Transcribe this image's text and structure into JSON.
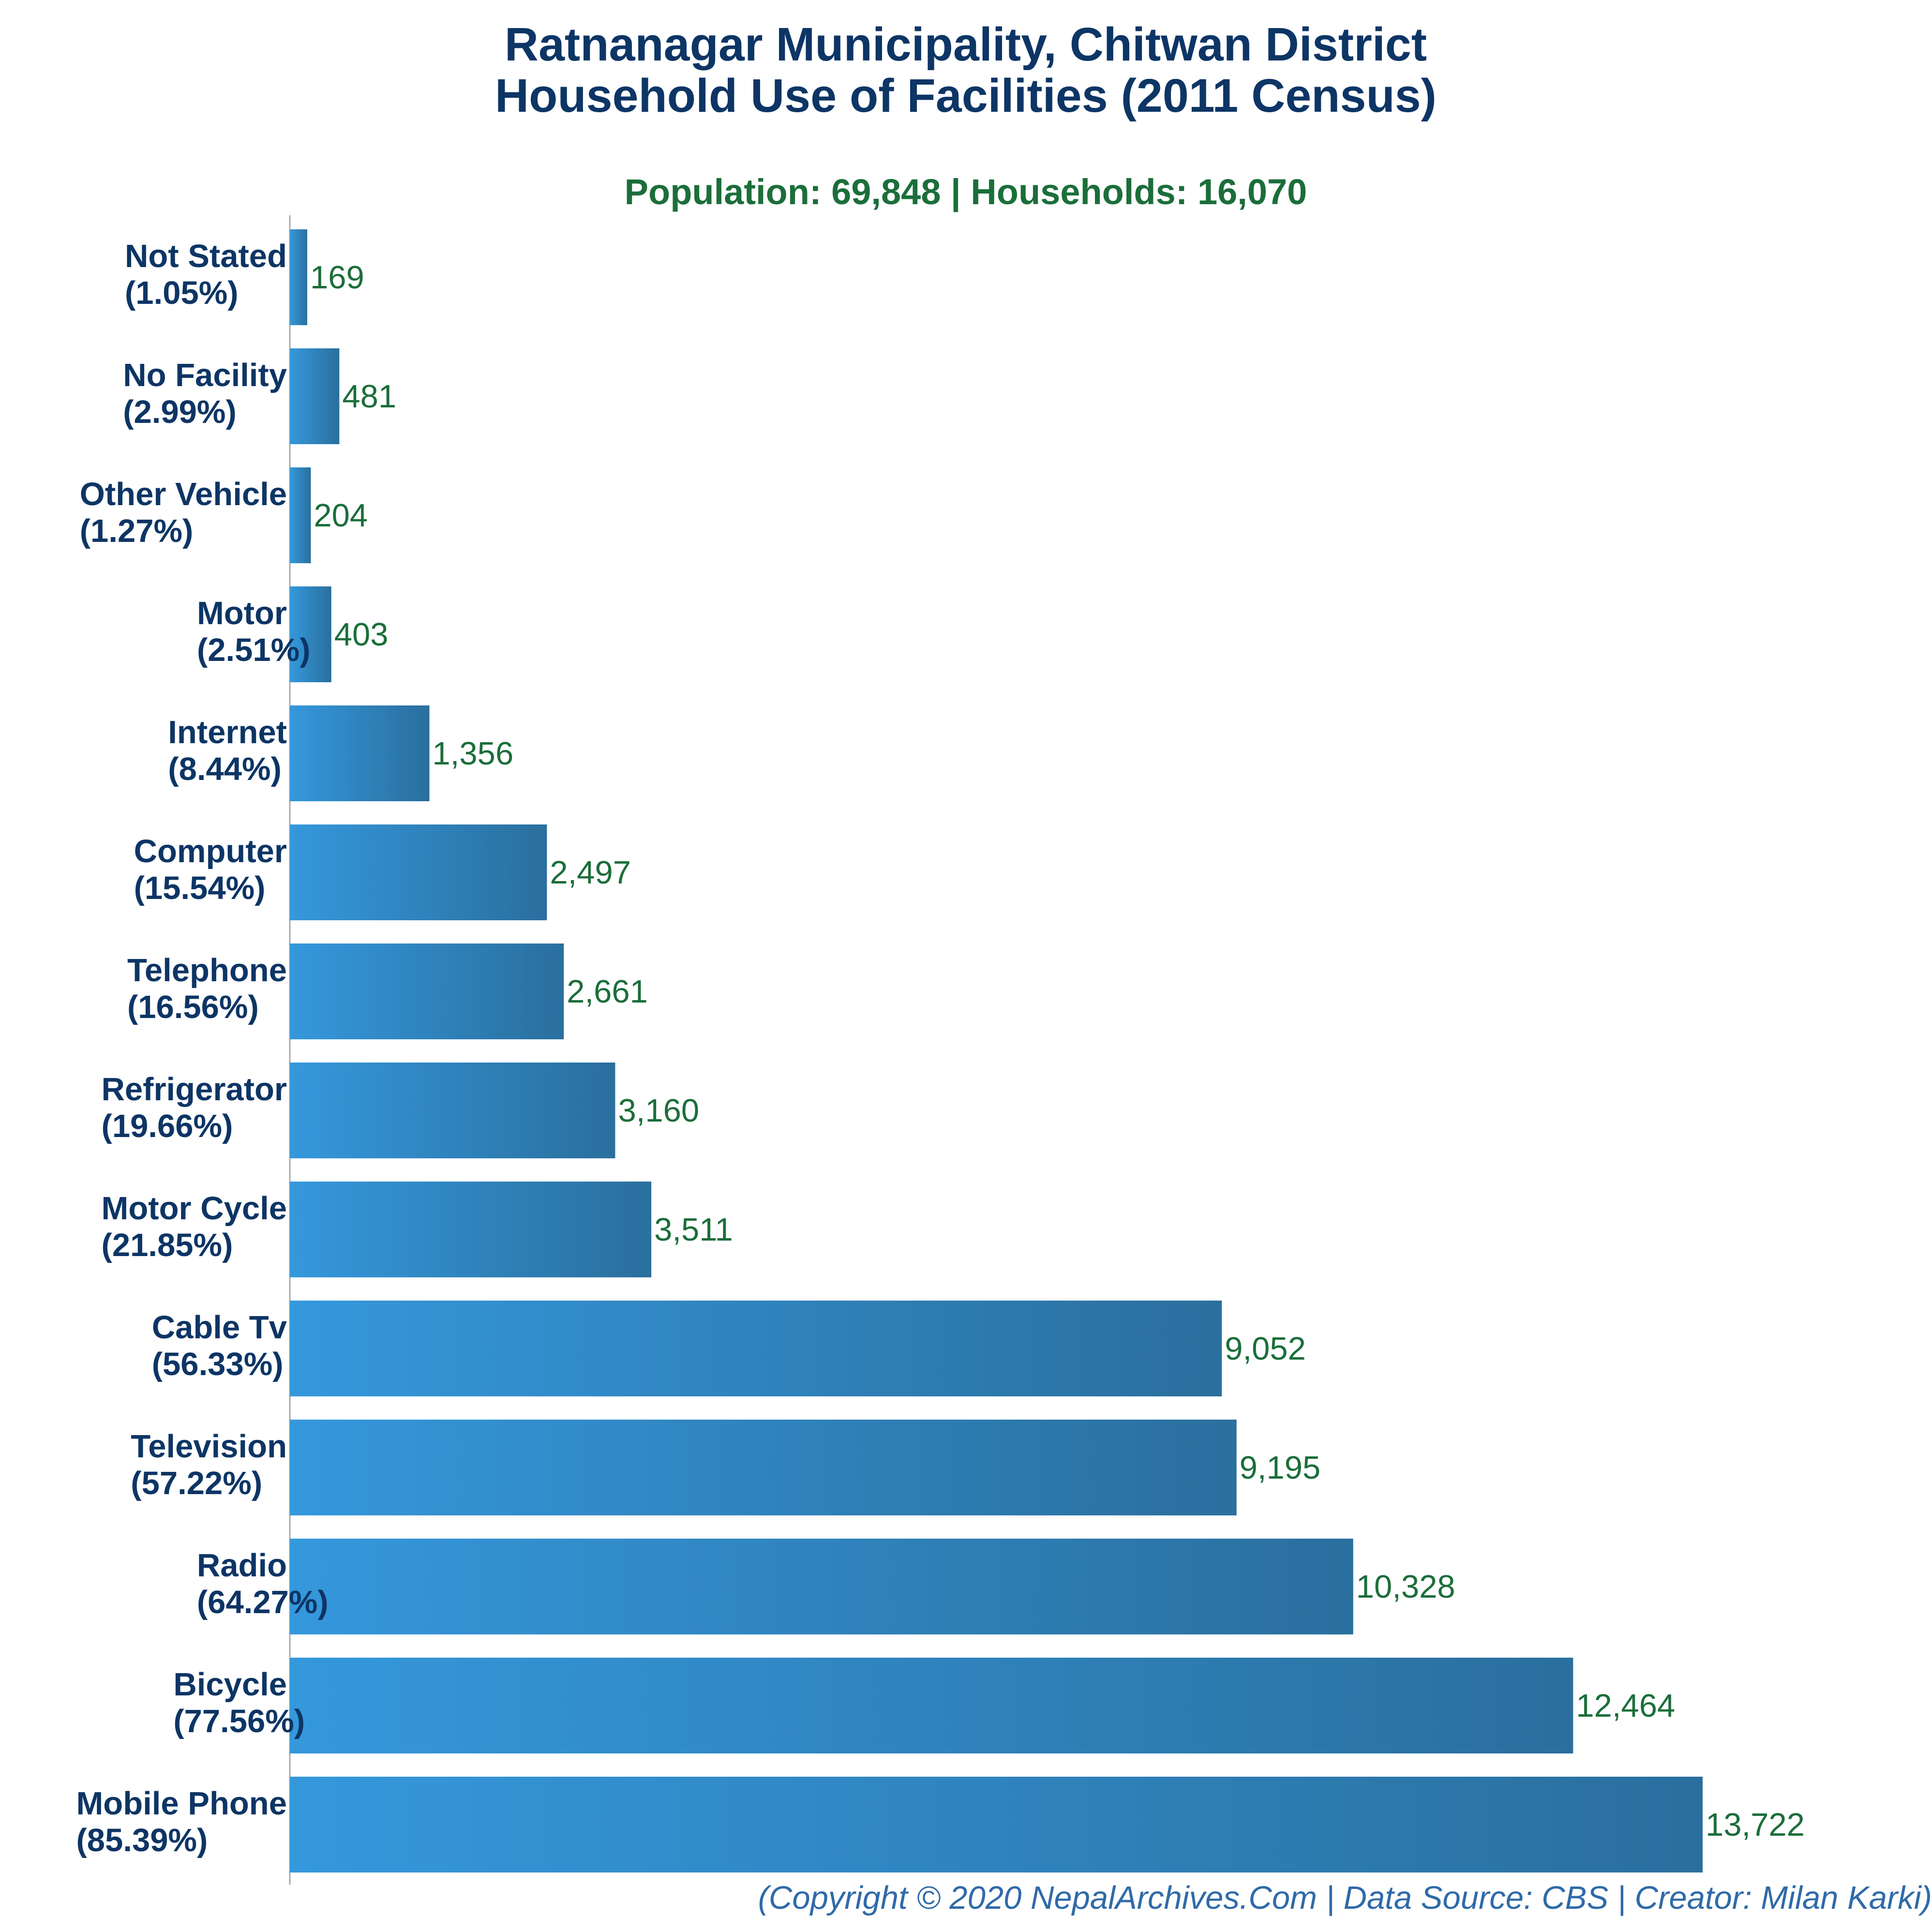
{
  "title_line1": "Ratnanagar Municipality, Chitwan District",
  "title_line2": "Household Use of Facilities (2011 Census)",
  "subtitle": "Population: 69,848 | Households: 16,070",
  "footer": "(Copyright © 2020 NepalArchives.Com | Data Source: CBS | Creator: Milan Karki)",
  "colors": {
    "bar_start": "#3598dc",
    "bar_end": "#2a6f9e",
    "title": "#0d3565",
    "value": "#1b6e3a",
    "footer": "#2f6aa8",
    "axis": "#aaaaaa"
  },
  "chart_data": {
    "type": "bar",
    "orientation": "horizontal",
    "categories": [
      "Not Stated",
      "No Facility",
      "Other Vehicle",
      "Motor",
      "Internet",
      "Computer",
      "Telephone",
      "Refrigerator",
      "Motor Cycle",
      "Cable Tv",
      "Television",
      "Radio",
      "Bicycle",
      "Mobile Phone"
    ],
    "percent_labels": [
      "(1.05%)",
      "(2.99%)",
      "(1.27%)",
      "(2.51%)",
      "(8.44%)",
      "(15.54%)",
      "(16.56%)",
      "(19.66%)",
      "(21.85%)",
      "(56.33%)",
      "(57.22%)",
      "(64.27%)",
      "(77.56%)",
      "(85.39%)"
    ],
    "values": [
      169,
      481,
      204,
      403,
      1356,
      2497,
      2661,
      3160,
      3511,
      9052,
      9195,
      10328,
      12464,
      13722
    ],
    "value_labels": [
      "169",
      "481",
      "204",
      "403",
      "1,356",
      "2,497",
      "2,661",
      "3,160",
      "3,511",
      "9,052",
      "9,195",
      "10,328",
      "12,464",
      "13,722"
    ],
    "xlim": [
      0,
      13722
    ],
    "grid": false,
    "legend": "none"
  }
}
